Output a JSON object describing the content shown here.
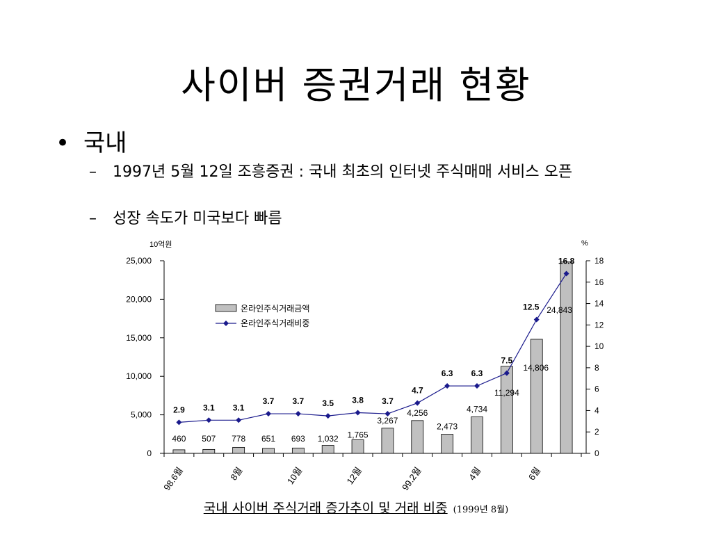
{
  "slide": {
    "title": "사이버 증권거래 현황",
    "bullet": "국내",
    "sub_items": [
      "1997년 5월 12일 조흥증권 : 국내 최초의 인터넷 주식매매 서비스 오픈",
      "성장 속도가 미국보다 빠름"
    ],
    "caption": "국내 사이버 주식거래 증가추이 및 거래 비중",
    "caption_note": "(1999년 8월)"
  },
  "colors": {
    "bar_fill": "#c0c0c0",
    "line": "#1a1a8c"
  },
  "chart_data": {
    "type": "bar",
    "y_unit_left": "10억원",
    "y_unit_right": "%",
    "ylim_left": [
      0,
      25000
    ],
    "yticks_left": [
      "0",
      "5,000",
      "10,000",
      "15,000",
      "20,000",
      "25,000"
    ],
    "ylim_right": [
      0,
      18
    ],
    "yticks_right": [
      "0",
      "2",
      "4",
      "6",
      "8",
      "10",
      "12",
      "14",
      "16",
      "18"
    ],
    "x_labels": [
      "98.6월",
      "8월",
      "10월",
      "12월",
      "99.2월",
      "4월",
      "6월"
    ],
    "legend_placement": "upper-left",
    "series": [
      {
        "name": "온라인주식거래금액",
        "kind": "bar",
        "values": [
          460,
          507,
          778,
          651,
          693,
          1032,
          1765,
          3267,
          4256,
          2473,
          4734,
          11294,
          14806,
          24843
        ],
        "labels": [
          "460",
          "507",
          "778",
          "651",
          "693",
          "1,032",
          "1,765",
          "3,267",
          "4,256",
          "2,473",
          "4,734",
          "11,294",
          "14,806",
          "24,843"
        ]
      },
      {
        "name": "온라인주식거래비중",
        "kind": "line",
        "values": [
          2.9,
          3.1,
          3.1,
          3.7,
          3.7,
          3.5,
          3.8,
          3.7,
          4.7,
          6.3,
          6.3,
          7.5,
          12.5,
          16.8
        ],
        "labels": [
          "2.9",
          "3.1",
          "3.1",
          "3.7",
          "3.7",
          "3.5",
          "3.8",
          "3.7",
          "4.7",
          "6.3",
          "6.3",
          "7.5",
          "12.5",
          "16.8"
        ]
      }
    ]
  }
}
